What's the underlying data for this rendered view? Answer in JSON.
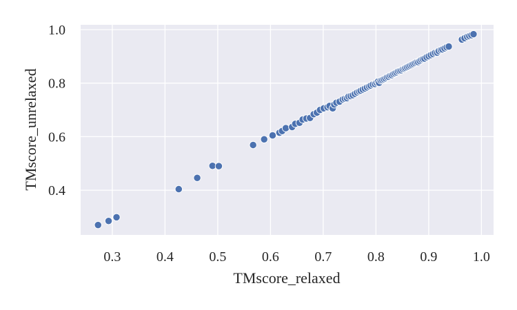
{
  "chart_data": {
    "type": "scatter",
    "xlabel": "TMscore_relaxed",
    "ylabel": "TMscore_unrelaxed",
    "xlim": [
      0.24,
      1.023
    ],
    "ylim": [
      0.233,
      1.018
    ],
    "xticks": [
      0.3,
      0.4,
      0.5,
      0.6,
      0.7,
      0.8,
      0.9,
      1.0
    ],
    "xtick_labels": [
      "0.3",
      "0.4",
      "0.5",
      "0.6",
      "0.7",
      "0.8",
      "0.9",
      "1.0"
    ],
    "yticks": [
      0.4,
      0.6,
      0.8,
      1.0
    ],
    "ytick_labels": [
      "0.4",
      "0.6",
      "0.8",
      "1.0"
    ],
    "grid": true,
    "background_color": "#eaeaf2",
    "marker_color": "#4c72b0",
    "points": [
      [
        0.273,
        0.27
      ],
      [
        0.293,
        0.285
      ],
      [
        0.308,
        0.299
      ],
      [
        0.426,
        0.404
      ],
      [
        0.461,
        0.446
      ],
      [
        0.49,
        0.491
      ],
      [
        0.502,
        0.49
      ],
      [
        0.567,
        0.569
      ],
      [
        0.588,
        0.59
      ],
      [
        0.604,
        0.605
      ],
      [
        0.617,
        0.615
      ],
      [
        0.622,
        0.621
      ],
      [
        0.629,
        0.632
      ],
      [
        0.641,
        0.636
      ],
      [
        0.647,
        0.648
      ],
      [
        0.655,
        0.652
      ],
      [
        0.661,
        0.664
      ],
      [
        0.668,
        0.668
      ],
      [
        0.675,
        0.67
      ],
      [
        0.682,
        0.684
      ],
      [
        0.688,
        0.69
      ],
      [
        0.694,
        0.7
      ],
      [
        0.701,
        0.706
      ],
      [
        0.708,
        0.71
      ],
      [
        0.712,
        0.715
      ],
      [
        0.718,
        0.706
      ],
      [
        0.721,
        0.72
      ],
      [
        0.725,
        0.727
      ],
      [
        0.731,
        0.731
      ],
      [
        0.737,
        0.739
      ],
      [
        0.741,
        0.742
      ],
      [
        0.745,
        0.744
      ],
      [
        0.748,
        0.75
      ],
      [
        0.752,
        0.752
      ],
      [
        0.756,
        0.755
      ],
      [
        0.76,
        0.76
      ],
      [
        0.764,
        0.765
      ],
      [
        0.768,
        0.769
      ],
      [
        0.771,
        0.772
      ],
      [
        0.775,
        0.776
      ],
      [
        0.779,
        0.78
      ],
      [
        0.783,
        0.784
      ],
      [
        0.787,
        0.788
      ],
      [
        0.79,
        0.791
      ],
      [
        0.794,
        0.795
      ],
      [
        0.798,
        0.797
      ],
      [
        0.801,
        0.802
      ],
      [
        0.804,
        0.806
      ],
      [
        0.806,
        0.801
      ],
      [
        0.809,
        0.81
      ],
      [
        0.812,
        0.812
      ],
      [
        0.815,
        0.815
      ],
      [
        0.818,
        0.818
      ],
      [
        0.821,
        0.822
      ],
      [
        0.824,
        0.824
      ],
      [
        0.827,
        0.828
      ],
      [
        0.83,
        0.83
      ],
      [
        0.833,
        0.834
      ],
      [
        0.836,
        0.837
      ],
      [
        0.839,
        0.84
      ],
      [
        0.842,
        0.844
      ],
      [
        0.845,
        0.846
      ],
      [
        0.848,
        0.848
      ],
      [
        0.851,
        0.852
      ],
      [
        0.854,
        0.854
      ],
      [
        0.856,
        0.857
      ],
      [
        0.859,
        0.86
      ],
      [
        0.862,
        0.863
      ],
      [
        0.865,
        0.866
      ],
      [
        0.868,
        0.869
      ],
      [
        0.871,
        0.872
      ],
      [
        0.874,
        0.875
      ],
      [
        0.877,
        0.878
      ],
      [
        0.88,
        0.879
      ],
      [
        0.883,
        0.883
      ],
      [
        0.886,
        0.887
      ],
      [
        0.889,
        0.89
      ],
      [
        0.892,
        0.892
      ],
      [
        0.896,
        0.897
      ],
      [
        0.9,
        0.901
      ],
      [
        0.904,
        0.905
      ],
      [
        0.908,
        0.909
      ],
      [
        0.912,
        0.913
      ],
      [
        0.916,
        0.914
      ],
      [
        0.919,
        0.92
      ],
      [
        0.923,
        0.924
      ],
      [
        0.926,
        0.926
      ],
      [
        0.93,
        0.93
      ],
      [
        0.934,
        0.934
      ],
      [
        0.938,
        0.937
      ],
      [
        0.963,
        0.963
      ],
      [
        0.968,
        0.968
      ],
      [
        0.973,
        0.973
      ],
      [
        0.977,
        0.976
      ],
      [
        0.981,
        0.979
      ],
      [
        0.985,
        0.983
      ]
    ]
  }
}
